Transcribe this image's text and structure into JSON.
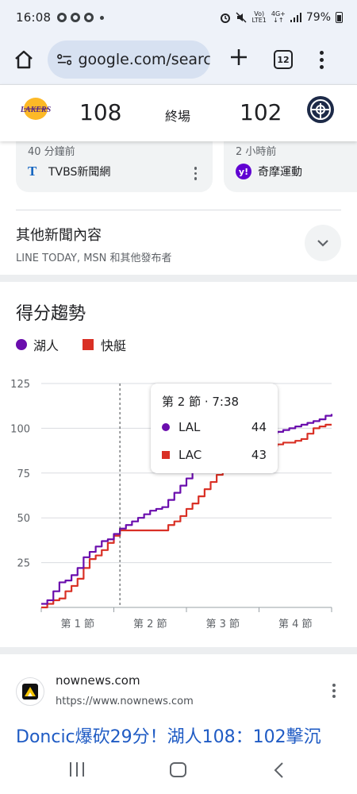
{
  "status_bar": {
    "time": "16:08",
    "network_top": "Vo)",
    "network_bottom": "LTE1",
    "signal_top": "4G+",
    "signal_bottom": "↓↑",
    "battery": "79%"
  },
  "browser": {
    "url": "google.com/search",
    "tab_count": "12"
  },
  "scoreboard": {
    "home_score": "108",
    "status": "終場",
    "away_score": "102",
    "home_logo": "LAKERS"
  },
  "news_cards": [
    {
      "time": "40 分鐘前",
      "source": "TVBS新聞網",
      "logo": "T"
    },
    {
      "time": "2 小時前",
      "source": "奇摩運動",
      "logo": "y!"
    }
  ],
  "other_news": {
    "title": "其他新聞內容",
    "subtitle": "LINE TODAY, MSN 和其他發布者"
  },
  "score_trend": {
    "title": "得分趨勢",
    "legend_home": "湖人",
    "legend_away": "快艇",
    "tooltip": {
      "header": "第 2 節 · 7:38",
      "home_team": "LAL",
      "home_value": "44",
      "away_team": "LAC",
      "away_value": "43"
    }
  },
  "chart_data": {
    "type": "line",
    "x_label_categories": [
      "第 1 節",
      "第 2 節",
      "第 3 節",
      "第 4 節"
    ],
    "xlabel": "",
    "ylabel": "",
    "xlim": [
      0,
      48
    ],
    "ylim": [
      0,
      125
    ],
    "yticks": [
      25,
      50,
      75,
      100,
      125
    ],
    "grid": true,
    "legend_position": "top-left",
    "series": [
      {
        "name": "湖人",
        "color": "#6a0dad",
        "x": [
          0,
          1,
          2,
          3,
          4,
          5,
          6,
          7,
          8,
          9,
          10,
          11,
          12,
          13,
          14,
          15,
          16,
          17,
          18,
          19,
          20,
          21,
          22,
          23,
          24,
          25,
          26,
          27,
          28,
          29,
          30,
          31,
          32,
          33,
          34,
          35,
          36,
          37,
          38,
          39,
          40,
          41,
          42,
          43,
          44,
          45,
          46,
          47,
          48
        ],
        "values": [
          2,
          4,
          9,
          14,
          15,
          18,
          22,
          28,
          31,
          34,
          37,
          38,
          41,
          44,
          46,
          48,
          50,
          52,
          54,
          55,
          56,
          60,
          64,
          68,
          72,
          77,
          80,
          82,
          85,
          88,
          90,
          91,
          92,
          93,
          94,
          95,
          95,
          96,
          97,
          98,
          99,
          100,
          101,
          102,
          103,
          104,
          105,
          107,
          108
        ]
      },
      {
        "name": "快艇",
        "color": "#d93025",
        "x": [
          0,
          1,
          2,
          3,
          4,
          5,
          6,
          7,
          8,
          9,
          10,
          11,
          12,
          13,
          14,
          15,
          16,
          17,
          18,
          19,
          20,
          21,
          22,
          23,
          24,
          25,
          26,
          27,
          28,
          29,
          30,
          31,
          32,
          33,
          34,
          35,
          36,
          37,
          38,
          39,
          40,
          41,
          42,
          43,
          44,
          45,
          46,
          47,
          48
        ],
        "values": [
          0,
          2,
          4,
          5,
          9,
          12,
          16,
          22,
          27,
          29,
          32,
          36,
          40,
          43,
          43,
          43,
          43,
          43,
          43,
          43,
          43,
          46,
          48,
          51,
          55,
          58,
          62,
          66,
          70,
          74,
          78,
          82,
          84,
          86,
          87,
          88,
          88,
          89,
          90,
          91,
          92,
          92,
          93,
          94,
          97,
          100,
          101,
          102,
          102
        ]
      }
    ],
    "marker_x": 13
  },
  "result": {
    "site": "nownews.com",
    "url": "https://www.nownews.com",
    "title": "Doncic爆砍29分！湖人108：102擊沉"
  }
}
